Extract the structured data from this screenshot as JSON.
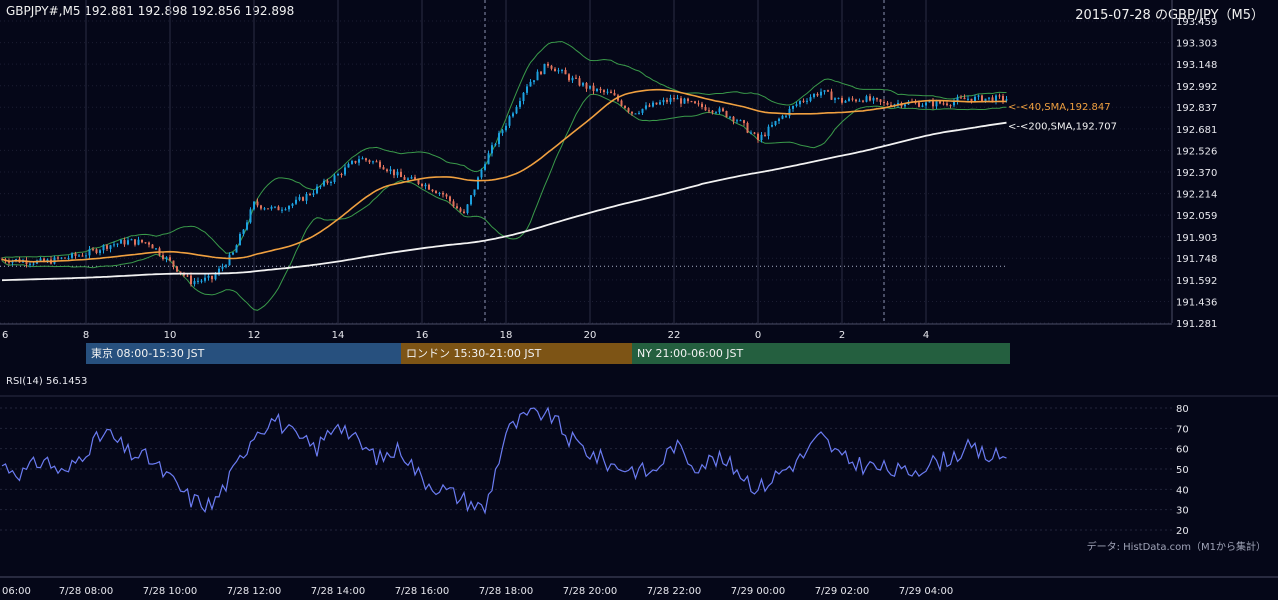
{
  "header": {
    "symbol_line": "GBPJPY#,M5 192.881 192.898 192.856 192.898",
    "title": "2015-07-28 のGBP/JPY（M5）"
  },
  "price_axis": {
    "ticks": [
      "193.459",
      "193.303",
      "193.148",
      "192.992",
      "192.837",
      "192.681",
      "192.526",
      "192.370",
      "192.214",
      "192.059",
      "191.903",
      "191.748",
      "191.592",
      "191.436",
      "191.281"
    ],
    "range": [
      191.281,
      193.459
    ]
  },
  "time_axis_top": {
    "labels": [
      "6",
      "8",
      "10",
      "12",
      "14",
      "16",
      "18",
      "20",
      "22",
      "0",
      "2",
      "4"
    ]
  },
  "sessions": [
    {
      "label": "東京 08:00-15:30 JST",
      "color": "#27507e"
    },
    {
      "label": "ロンドン 15:30-21:00 JST",
      "color": "#7d5415"
    },
    {
      "label": "NY 21:00-06:00 JST",
      "color": "#245f3f"
    }
  ],
  "ma_labels": {
    "sma40": "<-<40,SMA,192.847",
    "sma200": "<-<200,SMA,192.707"
  },
  "colors": {
    "bull": "#1da2e0",
    "bear": "#e2735c",
    "sma40": "#f0a040",
    "sma200": "#f2f2f2",
    "bands": "#3a9a4a",
    "rsi": "#6b7cf2",
    "grid": "#2a2d44"
  },
  "rsi": {
    "title": "RSI(14) 56.1453",
    "ticks": [
      "80",
      "70",
      "60",
      "50",
      "40",
      "30",
      "20"
    ],
    "range": [
      20,
      80
    ]
  },
  "source_note": "データ: HistData.com（M1から集計）",
  "time_axis_bottom": {
    "labels": [
      "06:00",
      "7/28 08:00",
      "7/28 10:00",
      "7/28 12:00",
      "7/28 14:00",
      "7/28 16:00",
      "7/28 18:00",
      "7/28 20:00",
      "7/28 22:00",
      "7/29 00:00",
      "7/29 02:00",
      "7/29 04:00"
    ]
  },
  "chart_data": [
    {
      "type": "candlestick",
      "title": "GBPJPY#,M5",
      "ylim": [
        191.281,
        193.459
      ],
      "x": [
        "6",
        "8",
        "10",
        "12",
        "14",
        "16",
        "18",
        "20",
        "22",
        "0",
        "2",
        "4"
      ],
      "close_series": [
        {
          "time": "06:00",
          "close": 191.74
        },
        {
          "time": "07:00",
          "close": 191.72
        },
        {
          "time": "08:00",
          "close": 191.78
        },
        {
          "time": "08:30",
          "close": 191.84
        },
        {
          "time": "09:00",
          "close": 191.87
        },
        {
          "time": "09:30",
          "close": 191.86
        },
        {
          "time": "10:00",
          "close": 191.72
        },
        {
          "time": "10:30",
          "close": 191.58
        },
        {
          "time": "11:00",
          "close": 191.6
        },
        {
          "time": "11:30",
          "close": 191.78
        },
        {
          "time": "12:00",
          "close": 192.14
        },
        {
          "time": "12:30",
          "close": 192.1
        },
        {
          "time": "13:00",
          "close": 192.15
        },
        {
          "time": "14:00",
          "close": 192.35
        },
        {
          "time": "14:30",
          "close": 192.47
        },
        {
          "time": "15:00",
          "close": 192.43
        },
        {
          "time": "15:30",
          "close": 192.33
        },
        {
          "time": "16:00",
          "close": 192.29
        },
        {
          "time": "16:30",
          "close": 192.21
        },
        {
          "time": "17:00",
          "close": 192.06
        },
        {
          "time": "17:30",
          "close": 192.45
        },
        {
          "time": "18:00",
          "close": 192.72
        },
        {
          "time": "18:30",
          "close": 193.0
        },
        {
          "time": "19:00",
          "close": 193.15
        },
        {
          "time": "19:30",
          "close": 193.05
        },
        {
          "time": "20:00",
          "close": 192.97
        },
        {
          "time": "20:30",
          "close": 192.93
        },
        {
          "time": "21:00",
          "close": 192.8
        },
        {
          "time": "21:30",
          "close": 192.85
        },
        {
          "time": "22:00",
          "close": 192.9
        },
        {
          "time": "22:30",
          "close": 192.85
        },
        {
          "time": "23:00",
          "close": 192.82
        },
        {
          "time": "23:30",
          "close": 192.75
        },
        {
          "time": "00:00",
          "close": 192.6
        },
        {
          "time": "00:30",
          "close": 192.75
        },
        {
          "time": "01:00",
          "close": 192.88
        },
        {
          "time": "01:30",
          "close": 192.95
        },
        {
          "time": "02:00",
          "close": 192.88
        },
        {
          "time": "02:30",
          "close": 192.9
        },
        {
          "time": "03:00",
          "close": 192.86
        },
        {
          "time": "03:30",
          "close": 192.87
        },
        {
          "time": "04:00",
          "close": 192.86
        },
        {
          "time": "04:30",
          "close": 192.87
        },
        {
          "time": "05:00",
          "close": 192.9
        },
        {
          "time": "05:30",
          "close": 192.898
        }
      ],
      "series": [
        {
          "name": "40,SMA",
          "last": 192.847
        },
        {
          "name": "200,SMA",
          "last": 192.707
        }
      ],
      "reference_line": 191.69
    },
    {
      "type": "line",
      "title": "RSI(14) 56.1453",
      "ylim": [
        20,
        80
      ],
      "series": [
        {
          "name": "RSI(14)",
          "x": [
            "06:00",
            "06:30",
            "07:00",
            "07:30",
            "08:00",
            "08:30",
            "09:00",
            "09:30",
            "10:00",
            "10:30",
            "11:00",
            "11:30",
            "12:00",
            "12:30",
            "13:00",
            "13:30",
            "14:00",
            "14:30",
            "15:00",
            "15:30",
            "16:00",
            "16:30",
            "17:00",
            "17:30",
            "18:00",
            "18:30",
            "19:00",
            "19:30",
            "20:00",
            "20:30",
            "21:00",
            "21:30",
            "22:00",
            "22:30",
            "23:00",
            "23:30",
            "00:00",
            "00:30",
            "01:00",
            "01:30",
            "02:00",
            "02:30",
            "03:00",
            "03:30",
            "04:00",
            "04:30",
            "05:00",
            "05:30"
          ],
          "values": [
            52,
            48,
            55,
            47,
            60,
            68,
            58,
            55,
            45,
            35,
            32,
            48,
            68,
            75,
            65,
            60,
            74,
            62,
            55,
            60,
            45,
            40,
            35,
            30,
            68,
            76,
            78,
            65,
            58,
            52,
            50,
            48,
            62,
            52,
            55,
            50,
            40,
            48,
            55,
            66,
            55,
            52,
            50,
            48,
            52,
            55,
            60,
            56.1
          ]
        }
      ]
    }
  ]
}
